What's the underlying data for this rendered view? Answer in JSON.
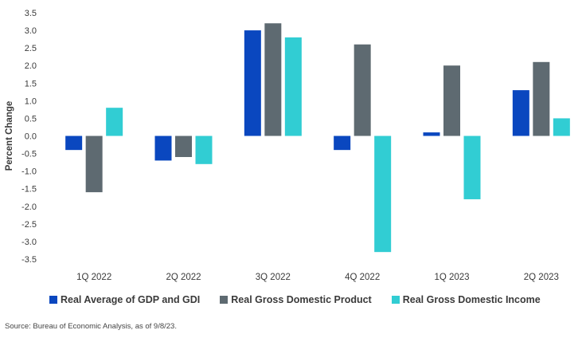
{
  "chart_data": {
    "type": "bar",
    "title": "",
    "xlabel": "",
    "ylabel": "Percent Change",
    "ylim": [
      -3.5,
      3.5
    ],
    "yticks": [
      3.5,
      3.0,
      2.5,
      2.0,
      1.5,
      1.0,
      0.5,
      0.0,
      -0.5,
      -1.0,
      -1.5,
      -2.0,
      -2.5,
      -3.0,
      -3.5
    ],
    "ytick_labels": [
      "3.5",
      "3.0",
      "2.5",
      "2.0",
      "1.5",
      "1.0",
      "0.5",
      "0.0",
      "-0.5",
      "-1.0",
      "-1.5",
      "-2.0",
      "-2.5",
      "-3.0",
      "-3.5"
    ],
    "categories": [
      "1Q 2022",
      "2Q 2022",
      "3Q 2022",
      "4Q 2022",
      "1Q 2023",
      "2Q 2023"
    ],
    "series": [
      {
        "name": "Real Average of GDP and GDI",
        "color": "#0a47bf",
        "values": [
          -0.4,
          -0.7,
          3.0,
          -0.4,
          0.1,
          1.3
        ]
      },
      {
        "name": "Real Gross Domestic Product",
        "color": "#5e6a71",
        "values": [
          -1.6,
          -0.6,
          3.2,
          2.6,
          2.0,
          2.1
        ]
      },
      {
        "name": "Real Gross Domestic Income",
        "color": "#31cdd3",
        "values": [
          0.8,
          -0.8,
          2.8,
          -3.3,
          -1.8,
          0.5
        ]
      }
    ],
    "legend_position": "bottom",
    "grid": false
  },
  "source_note": "Source: Bureau of Economic Analysis, as of 9/8/23."
}
